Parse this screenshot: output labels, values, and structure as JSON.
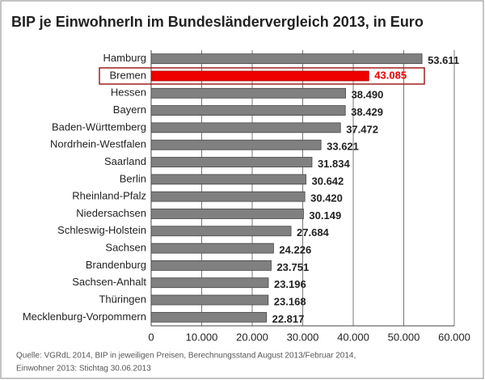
{
  "chart_data": {
    "type": "hbar",
    "title": "BIP je EinwohnerIn im Bundesländervergleich 2013, in Euro",
    "categories": [
      "Hamburg",
      "Bremen",
      "Hessen",
      "Bayern",
      "Baden-Württemberg",
      "Nordrhein-Westfalen",
      "Saarland",
      "Berlin",
      "Rheinland-Pfalz",
      "Niedersachsen",
      "Schleswig-Holstein",
      "Sachsen",
      "Brandenburg",
      "Sachsen-Anhalt",
      "Thüringen",
      "Mecklenburg-Vorpommern"
    ],
    "values": [
      53611,
      43085,
      38490,
      38429,
      37472,
      33621,
      31834,
      30642,
      30420,
      30149,
      27684,
      24226,
      23751,
      23196,
      23168,
      22817
    ],
    "value_labels": [
      "53.611",
      "43.085",
      "38.490",
      "38.429",
      "37.472",
      "33.621",
      "31.834",
      "30.642",
      "30.420",
      "30.149",
      "27.684",
      "24.226",
      "23.751",
      "23.196",
      "23.168",
      "22.817"
    ],
    "color": "#808080",
    "highlight": 1,
    "highlight_color": "#ee0000",
    "xlim": [
      0,
      60000
    ],
    "xticks": [
      0,
      {
        "value": 10000,
        "label": "10.000"
      },
      {
        "value": 20000,
        "label": "20.000"
      },
      {
        "value": 30000,
        "label": "30.000"
      },
      {
        "value": 40000,
        "label": "40.000"
      },
      {
        "value": 50000,
        "label": "50.000"
      },
      {
        "value": 60000,
        "label": "60.000"
      }
    ],
    "grid": true,
    "source": [
      "Quelle:  VGRdL 2014, BIP in jeweiligen Preisen, Berechnungsstand  August 2013/Februar 2014,",
      "Einwohner 2013: Stichtag 30.06.2013"
    ]
  }
}
